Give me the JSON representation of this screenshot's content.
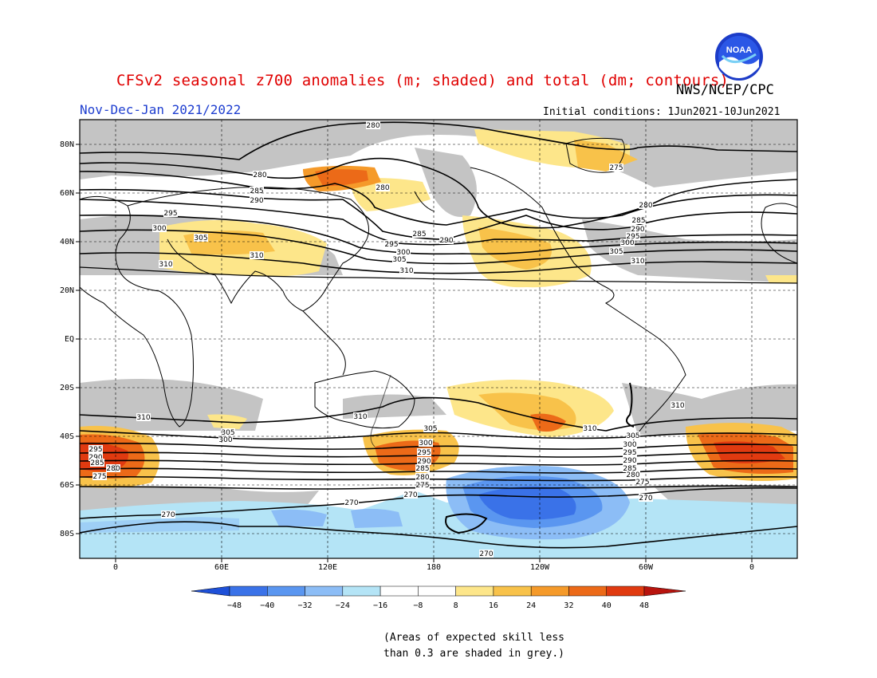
{
  "header": {
    "title": "CFSv2 seasonal z700 anomalies (m; shaded) and total (dm; contours)",
    "agency": "NWS/NCEP/CPC",
    "period": "Nov-Dec-Jan 2021/2022",
    "initial_conditions": "Initial conditions: 1Jun2021-10Jun2021",
    "logo_icon": "noaa-logo-icon",
    "logo_text": "NOAA"
  },
  "map": {
    "projection": "cylindrical-equidistant",
    "lat_labels": [
      "80N",
      "60N",
      "40N",
      "20N",
      "EQ",
      "20S",
      "40S",
      "60S",
      "80S"
    ],
    "lon_labels": [
      "0",
      "60E",
      "120E",
      "180",
      "120W",
      "60W",
      "0"
    ],
    "grid": "dashed",
    "colors": {
      "neg48": "#1e50d8",
      "neg40": "#3a72e8",
      "neg32": "#5a96f0",
      "neg24": "#8cbdf6",
      "neg16": "#b4e4f6",
      "neutral": "#ffffff",
      "pos8": "#fde68a",
      "pos16": "#f8c24a",
      "pos24": "#f59a2a",
      "pos32": "#ec6a18",
      "pos40": "#e03a10",
      "pos48": "#b8140e",
      "low_skill": "#c4c4c4",
      "coast": "#000000"
    },
    "contour_labels": [
      {
        "label": "280"
      },
      {
        "label": "280"
      },
      {
        "label": "285"
      },
      {
        "label": "290"
      },
      {
        "label": "295"
      },
      {
        "label": "300"
      },
      {
        "label": "305"
      },
      {
        "label": "310"
      },
      {
        "label": "310"
      },
      {
        "label": "280"
      },
      {
        "label": "275"
      },
      {
        "label": "280"
      },
      {
        "label": "285"
      },
      {
        "label": "290"
      },
      {
        "label": "295"
      },
      {
        "label": "300"
      },
      {
        "label": "305"
      },
      {
        "label": "310"
      },
      {
        "label": "285"
      },
      {
        "label": "290"
      },
      {
        "label": "295"
      },
      {
        "label": "300"
      },
      {
        "label": "305"
      },
      {
        "label": "310"
      },
      {
        "label": "310"
      },
      {
        "label": "305"
      },
      {
        "label": "300"
      },
      {
        "label": "295"
      },
      {
        "label": "290"
      },
      {
        "label": "285"
      },
      {
        "label": "280"
      },
      {
        "label": "275"
      },
      {
        "label": "310"
      },
      {
        "label": "305"
      },
      {
        "label": "300"
      },
      {
        "label": "295"
      },
      {
        "label": "290"
      },
      {
        "label": "285"
      },
      {
        "label": "280"
      },
      {
        "label": "275"
      },
      {
        "label": "270"
      },
      {
        "label": "310"
      },
      {
        "label": "310"
      },
      {
        "label": "305"
      },
      {
        "label": "300"
      },
      {
        "label": "295"
      },
      {
        "label": "290"
      },
      {
        "label": "285"
      },
      {
        "label": "280"
      },
      {
        "label": "275"
      },
      {
        "label": "270"
      },
      {
        "label": "270"
      },
      {
        "label": "270"
      },
      {
        "label": "270"
      }
    ]
  },
  "colorbar": {
    "tick_labels": [
      "-48",
      "-40",
      "-32",
      "-24",
      "-16",
      "-8",
      "8",
      "16",
      "24",
      "32",
      "40",
      "48"
    ]
  },
  "footnote": {
    "line1": "(Areas of expected skill less",
    "line2": "than 0.3 are shaded in grey.)"
  }
}
